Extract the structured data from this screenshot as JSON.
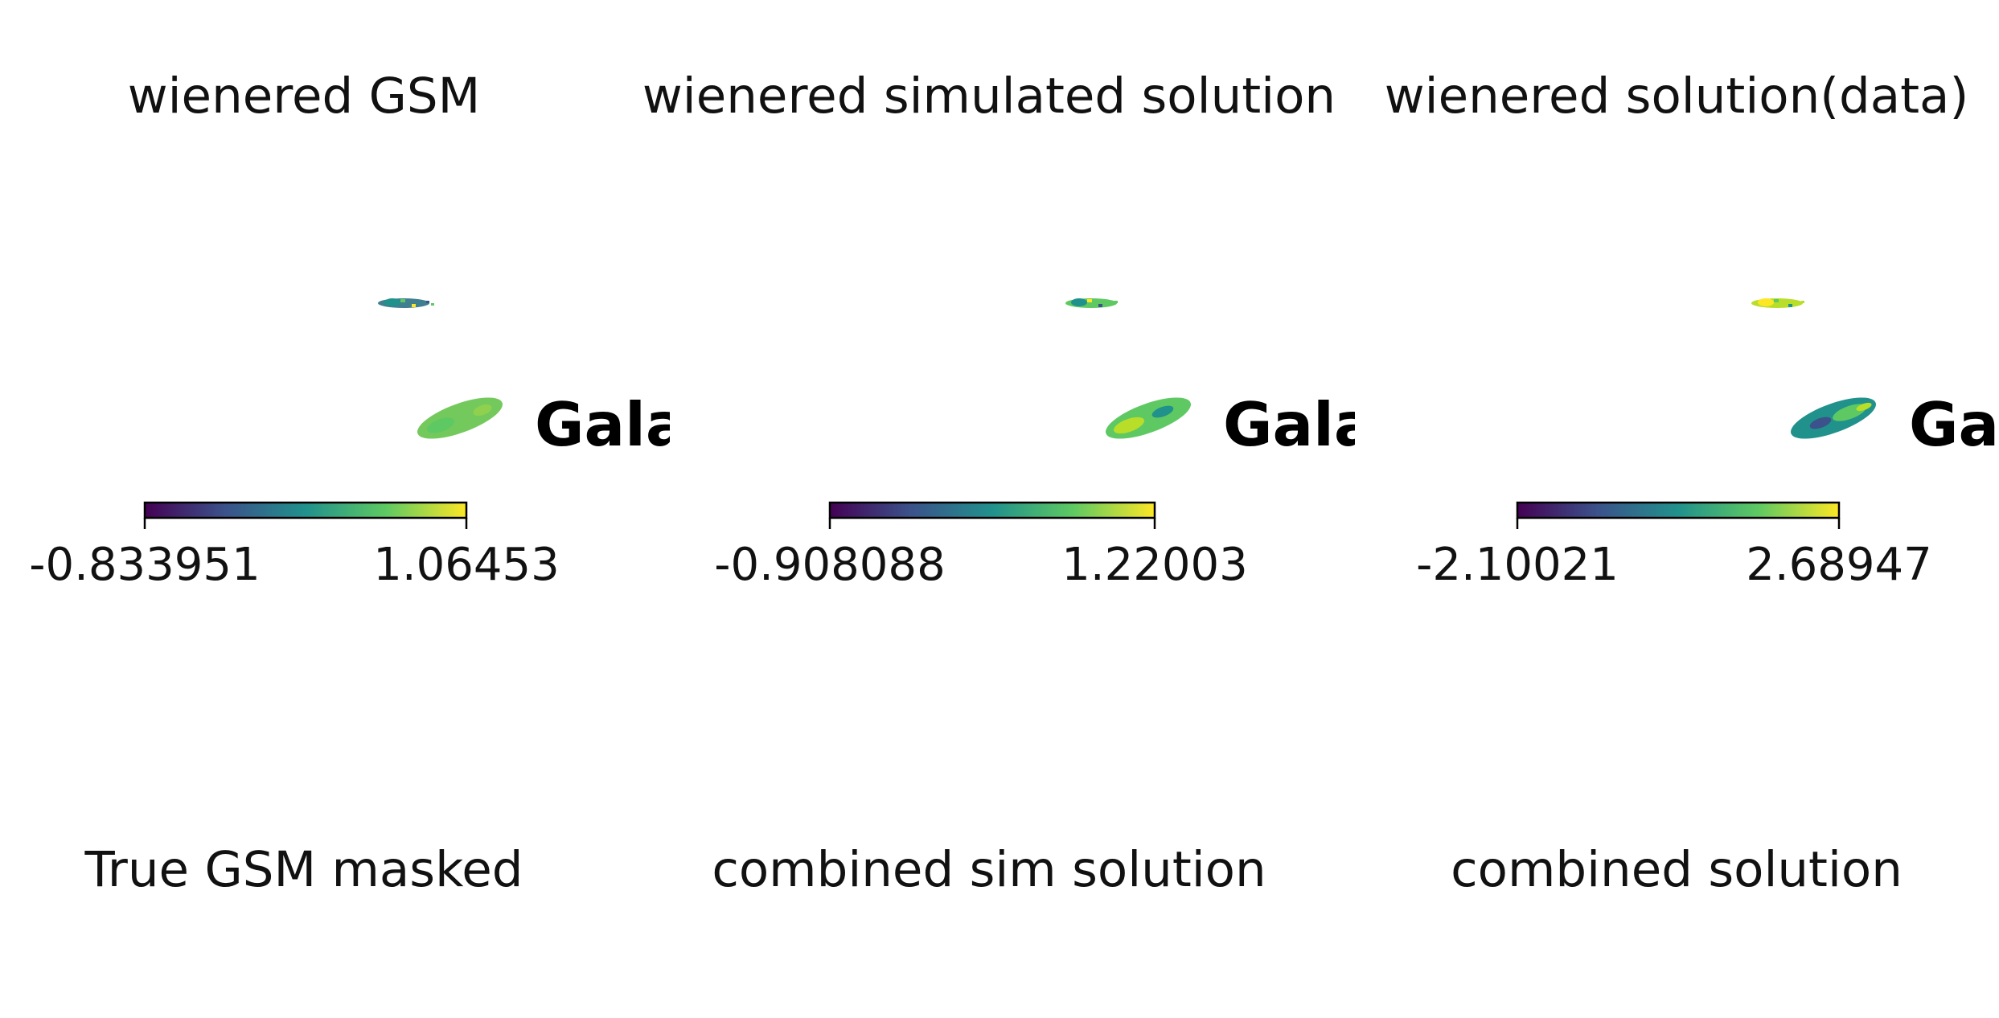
{
  "figure": {
    "cmap": "viridis",
    "colors": {
      "viridis": [
        "#440154",
        "#3b528b",
        "#21918c",
        "#5ec962",
        "#fde725"
      ]
    }
  },
  "chart_data": [
    {
      "type": "heatmap",
      "projection": "mollweide",
      "title": "wienered GSM",
      "colorbar": {
        "min": -0.833951,
        "max": 1.06453,
        "min_label": "-0.833951",
        "max_label": "1.06453",
        "orientation": "horizontal"
      },
      "clipped_label": "Gala"
    },
    {
      "type": "heatmap",
      "projection": "mollweide",
      "title": "wienered simulated solution",
      "colorbar": {
        "min": -0.908088,
        "max": 1.22003,
        "min_label": "-0.908088",
        "max_label": "1.22003",
        "orientation": "horizontal"
      },
      "clipped_label": "Gala"
    },
    {
      "type": "heatmap",
      "projection": "mollweide",
      "title": "wienered solution(data)",
      "colorbar": {
        "min": -2.10021,
        "max": 2.68947,
        "min_label": "-2.10021",
        "max_label": "2.68947",
        "orientation": "horizontal"
      },
      "clipped_label": "Ga"
    },
    {
      "type": "heatmap",
      "projection": "mollweide",
      "title": "True GSM masked"
    },
    {
      "type": "heatmap",
      "projection": "mollweide",
      "title": "combined sim solution"
    },
    {
      "type": "heatmap",
      "projection": "mollweide",
      "title": "combined solution"
    }
  ]
}
